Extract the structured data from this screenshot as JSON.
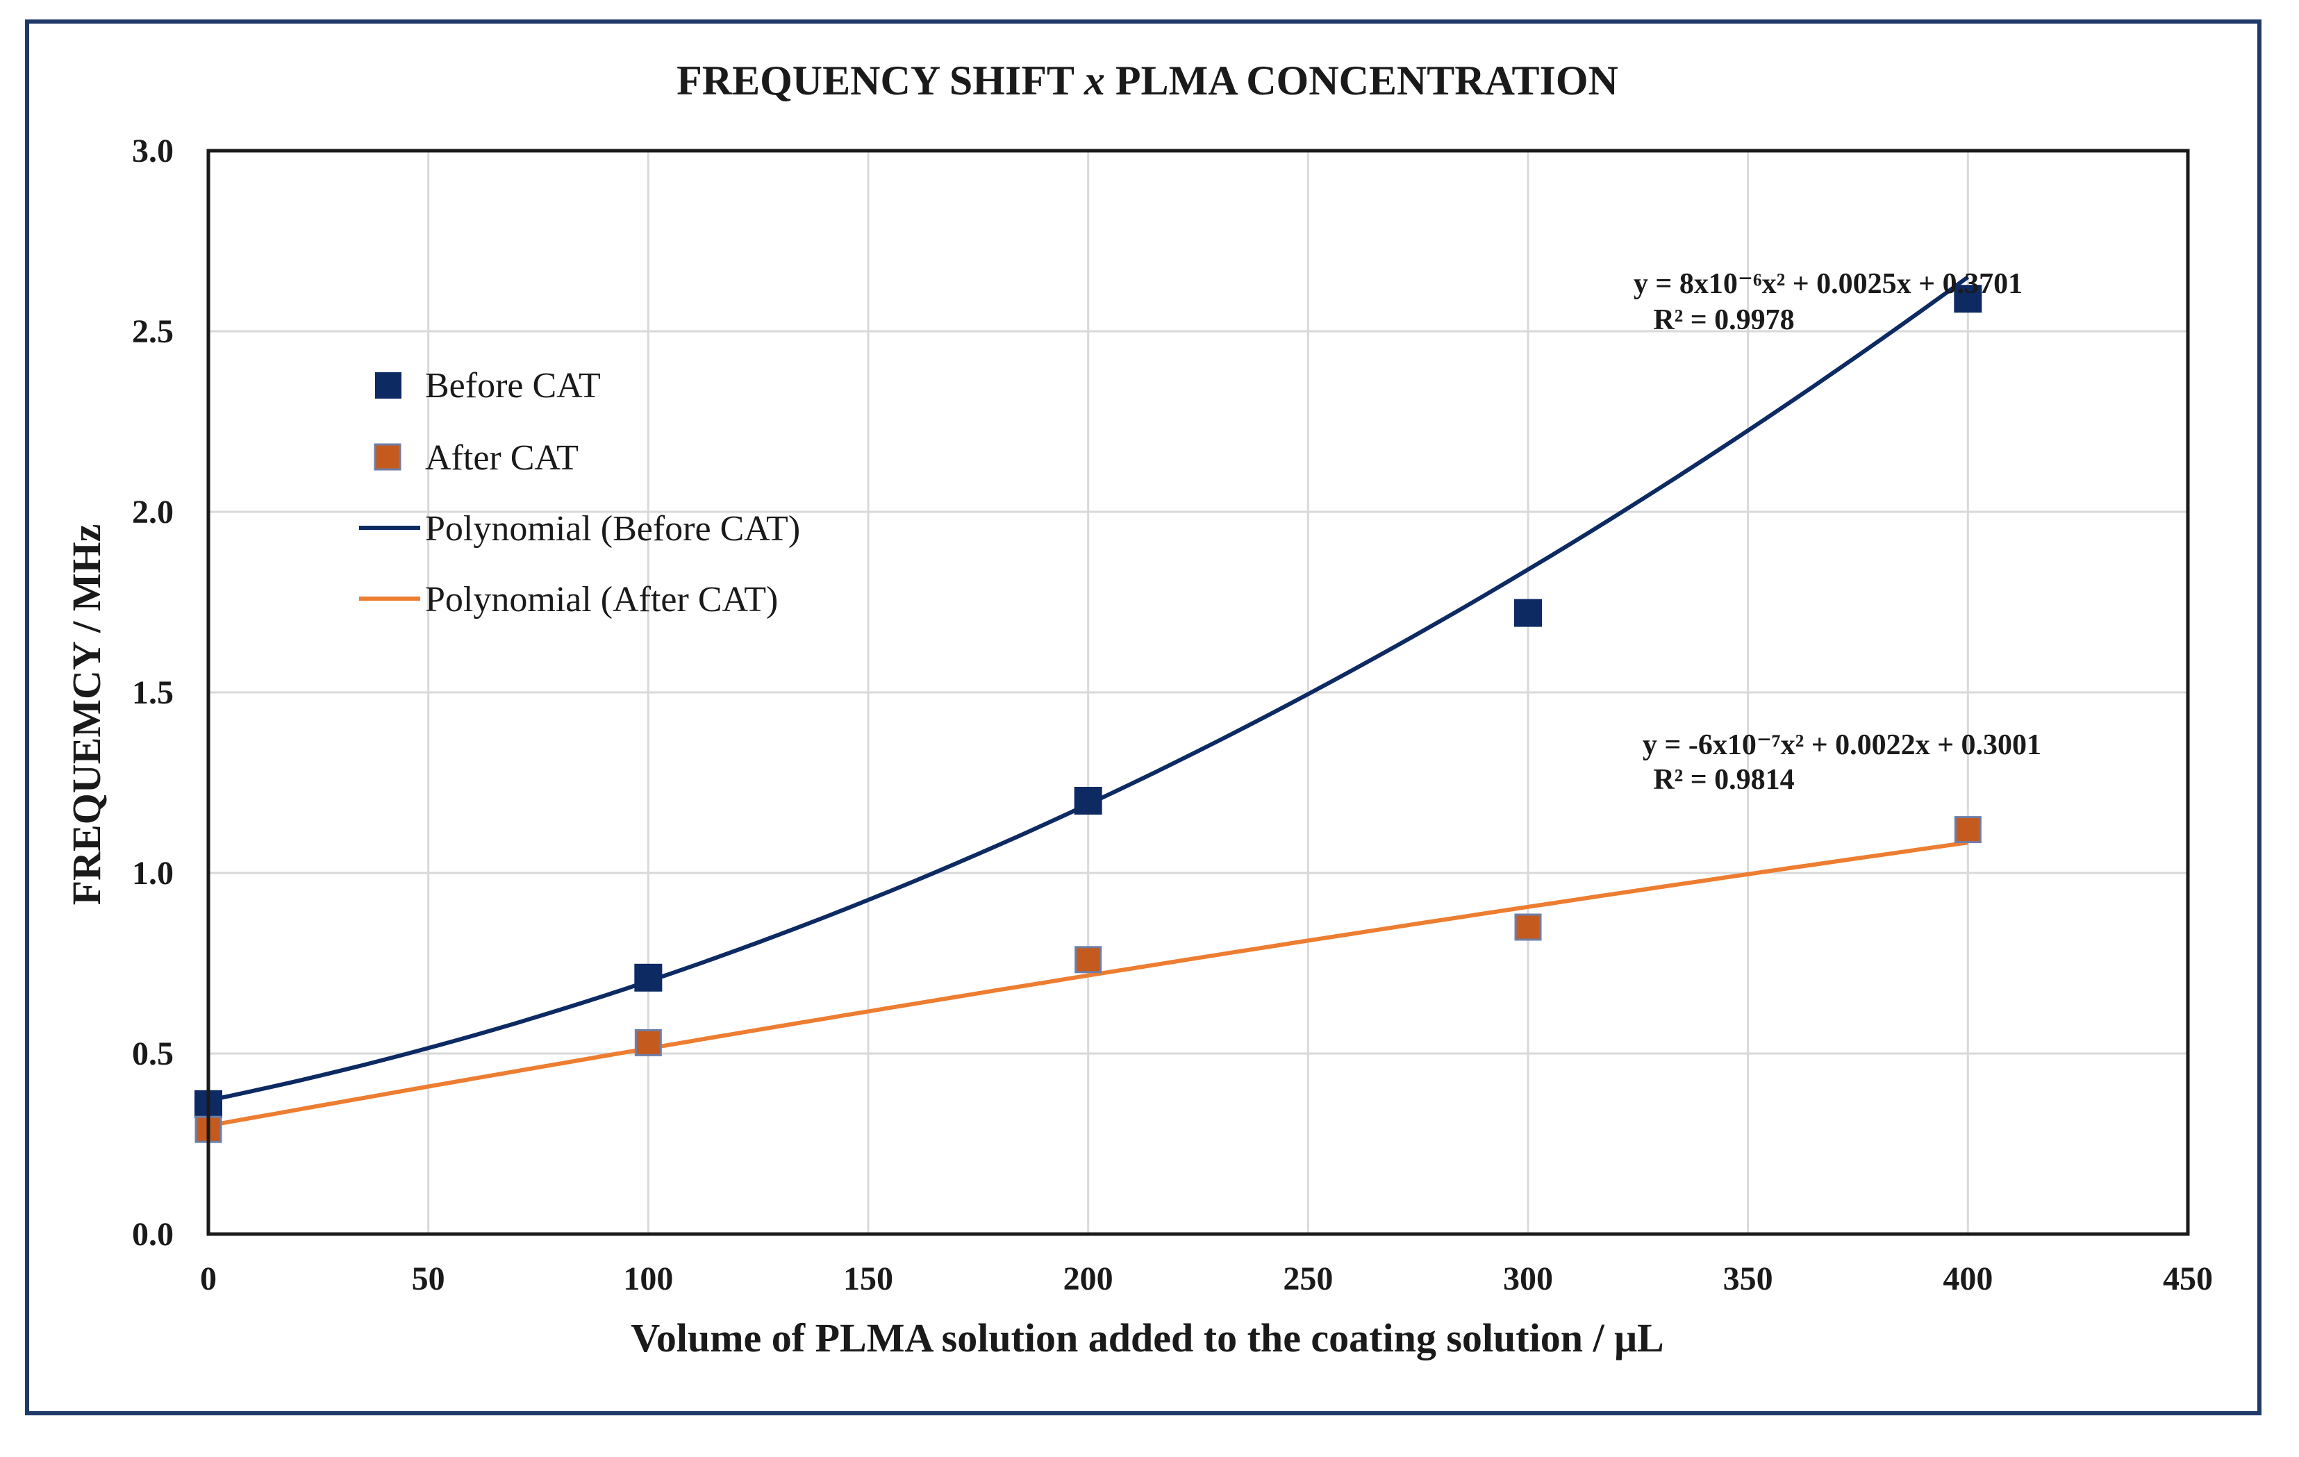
{
  "chart_data": {
    "type": "scatter",
    "title_pre": "FREQUENCY SHIFT ",
    "title_x": "x",
    "title_post": " PLMA CONCENTRATION",
    "xlabel": "Volume of PLMA solution added to the coating solution / μL",
    "ylabel": "FREQUEMCY / MHz",
    "xlim": [
      0,
      450
    ],
    "ylim": [
      0,
      3.0
    ],
    "xticks": [
      "0",
      "50",
      "100",
      "150",
      "200",
      "250",
      "300",
      "350",
      "400",
      "450"
    ],
    "yticks": [
      "0.0",
      "0.5",
      "1.0",
      "1.5",
      "2.0",
      "2.5",
      "3.0"
    ],
    "grid": true,
    "legend_position": "left",
    "series": [
      {
        "name": "Before CAT",
        "color": "#0d2a63",
        "x": [
          0,
          100,
          200,
          300,
          400
        ],
        "y": [
          0.36,
          0.71,
          1.2,
          1.72,
          2.59
        ],
        "trend": {
          "name": "Polynomial (Before CAT)",
          "coeffs": [
            8e-06,
            0.0025,
            0.3701
          ],
          "equation": "y = 8x10⁻⁶x² + 0.0025x + 0.3701",
          "r2": "R² = 0.9978"
        }
      },
      {
        "name": "After CAT",
        "color": "#c55a1e",
        "line_color": "#ed7d31",
        "x": [
          0,
          100,
          200,
          300,
          400
        ],
        "y": [
          0.29,
          0.53,
          0.76,
          0.85,
          1.12
        ],
        "trend": {
          "name": "Polynomial (After CAT)",
          "coeffs": [
            -6e-07,
            0.0022,
            0.3001
          ],
          "equation": "y = -6x10⁻⁷x² + 0.0022x + 0.3001",
          "r2": "R² = 0.9814"
        }
      }
    ]
  }
}
